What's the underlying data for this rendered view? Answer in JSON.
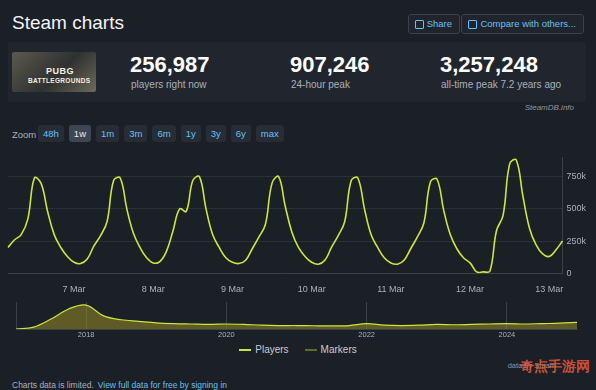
{
  "page": {
    "header": {
      "title": "Steam charts",
      "share": "Share",
      "compare": "Compare with others..."
    },
    "game": {
      "name_top": "PUBG",
      "name_bottom": "BATTLEGROUNDS"
    },
    "stats": [
      {
        "value": "256,987",
        "label": "players right now"
      },
      {
        "value": "907,246",
        "label": "24-hour peak"
      },
      {
        "value": "3,257,248",
        "label": "all-time peak 7.2 years ago"
      }
    ],
    "source": "SteamDB.info",
    "zoom": {
      "label": "Zoom",
      "options": [
        "48h",
        "1w",
        "1m",
        "3m",
        "6m",
        "1y",
        "3y",
        "6y",
        "max"
      ],
      "active": "1w"
    },
    "markers_legend": {
      "label": "Markers",
      "color": "#5f6e26"
    },
    "credit": "data by Steam",
    "footer": {
      "text": "Charts data is limited.",
      "link": "View full data for free by signing in"
    },
    "watermark": "奇点手游网"
  },
  "chart_data": [
    {
      "type": "line",
      "categories": [
        null,
        null,
        null,
        null,
        null,
        null,
        null,
        null,
        null,
        null,
        "7 Mar",
        null,
        null,
        null,
        null,
        null,
        null,
        null,
        null,
        null,
        null,
        null,
        "8 Mar",
        null,
        null,
        null,
        null,
        null,
        null,
        null,
        null,
        null,
        null,
        null,
        "9 Mar",
        null,
        null,
        null,
        null,
        null,
        null,
        null,
        null,
        null,
        null,
        null,
        "10 Mar",
        null,
        null,
        null,
        null,
        null,
        null,
        null,
        null,
        null,
        null,
        null,
        "11 Mar",
        null,
        null,
        null,
        null,
        null,
        null,
        null,
        null,
        null,
        null,
        null,
        "12 Mar",
        null,
        null,
        null,
        null,
        null,
        null,
        null,
        null,
        null,
        null,
        null,
        "13 Mar",
        null,
        null
      ],
      "series": [
        {
          "name": "Players",
          "color": "#cde63c",
          "values": [
            200000,
            260000,
            300000,
            420000,
            740000,
            700000,
            480000,
            300000,
            200000,
            130000,
            85000,
            75000,
            110000,
            210000,
            290000,
            400000,
            720000,
            740000,
            500000,
            310000,
            200000,
            120000,
            80000,
            90000,
            170000,
            330000,
            500000,
            480000,
            720000,
            750000,
            500000,
            300000,
            200000,
            120000,
            85000,
            75000,
            100000,
            190000,
            280000,
            380000,
            700000,
            750000,
            520000,
            320000,
            200000,
            130000,
            85000,
            70000,
            100000,
            200000,
            290000,
            400000,
            720000,
            740000,
            500000,
            300000,
            200000,
            120000,
            80000,
            70000,
            100000,
            190000,
            280000,
            390000,
            710000,
            730000,
            490000,
            300000,
            190000,
            120000,
            80000,
            10000,
            10000,
            15000,
            330000,
            450000,
            850000,
            880000,
            600000,
            350000,
            220000,
            150000,
            130000,
            180000,
            250000
          ]
        }
      ],
      "ylim": [
        0,
        900000
      ],
      "yticks": [
        0,
        {
          "value": 250000,
          "label": "250k"
        },
        {
          "value": 500000,
          "label": "500k"
        },
        {
          "value": 750000,
          "label": "750k"
        }
      ],
      "grid": true
    },
    {
      "type": "area",
      "categories": [
        null,
        null,
        null,
        null,
        "2018",
        null,
        null,
        null,
        null,
        null,
        null,
        null,
        "2020",
        null,
        null,
        null,
        null,
        null,
        null,
        null,
        "2022",
        null,
        null,
        null,
        null,
        null,
        null,
        null,
        "2024",
        null,
        null,
        null,
        null
      ],
      "series": [
        {
          "name": "Players",
          "color": "#cde63c",
          "values": [
            0,
            250000,
            1300000,
            2600000,
            3100000,
            1700000,
            1200000,
            1000000,
            800000,
            700000,
            650000,
            600000,
            650000,
            600000,
            500000,
            450000,
            450000,
            420000,
            400000,
            450000,
            700000,
            500000,
            450000,
            500000,
            600000,
            550000,
            600000,
            650000,
            700000,
            650000,
            700000,
            750000,
            850000
          ]
        }
      ],
      "ylim": [
        0,
        3500000
      ],
      "tick_labels": "x"
    }
  ]
}
